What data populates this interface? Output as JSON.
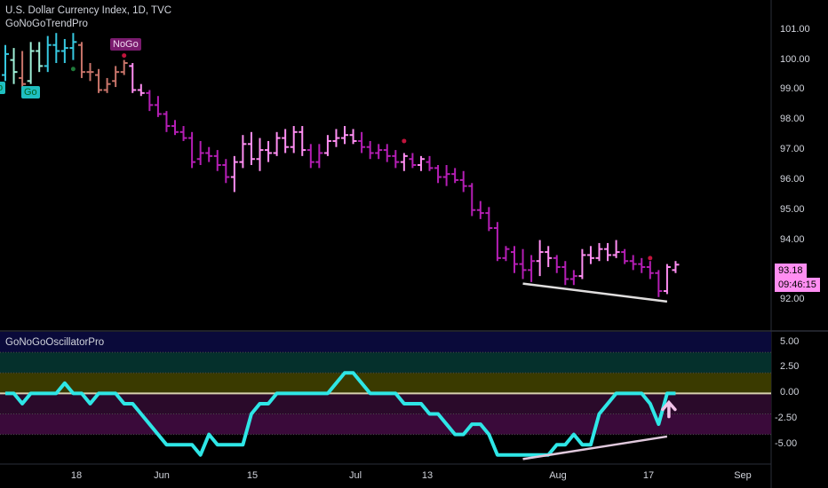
{
  "header": {
    "title": "U.S. Dollar Currency Index, 1D, TVC",
    "indicator": "GoNoGoTrendPro",
    "oscillator_title": "GoNoGoOscillatorPro"
  },
  "labels": {
    "go": "Go",
    "nogo": "NoGo"
  },
  "price_box": {
    "last": "93.18",
    "timer": "09:46:15"
  },
  "colors": {
    "go_strong": "#37c8e0",
    "go_light": "#9ff0d8",
    "nogo_brown": "#c8746a",
    "nogo_strong": "#b41eb4",
    "nogo_light": "#ff8ef2",
    "nogo_tag": "#7a1b6e",
    "go_tag": "#1fbfc0",
    "osc_line": "#2ee6e6",
    "zero_line": "#d8d2b0"
  },
  "chart_data": [
    {
      "type": "ohlc",
      "title": "U.S. Dollar Currency Index, 1D, TVC",
      "ylim": [
        91.0,
        102.0
      ],
      "y_ticks": [
        "101.00",
        "100.00",
        "99.00",
        "98.00",
        "97.00",
        "96.00",
        "95.00",
        "94.00",
        "93.00",
        "92.00"
      ],
      "x_ticks": [
        "18",
        "Jun",
        "15",
        "Jul",
        "13",
        "Aug",
        "17",
        "Sep"
      ],
      "bars": [
        [
          99.5,
          100.5,
          99.3,
          100.2,
          "go"
        ],
        [
          100.0,
          100.4,
          99.2,
          99.6,
          "golight"
        ],
        [
          99.4,
          100.3,
          98.9,
          99.2,
          "nogobrown"
        ],
        [
          99.3,
          100.6,
          99.2,
          100.3,
          "golight"
        ],
        [
          100.3,
          100.6,
          99.6,
          99.8,
          "golight"
        ],
        [
          99.8,
          100.8,
          99.6,
          100.5,
          "go"
        ],
        [
          100.5,
          100.9,
          99.9,
          100.3,
          "go"
        ],
        [
          100.3,
          100.7,
          99.9,
          100.4,
          "go"
        ],
        [
          100.4,
          100.9,
          100.0,
          100.6,
          "go"
        ],
        [
          100.5,
          100.6,
          99.4,
          99.6,
          "nogobrown"
        ],
        [
          99.6,
          99.9,
          99.3,
          99.6,
          "nogobrown"
        ],
        [
          99.5,
          99.7,
          98.9,
          99.0,
          "nogobrown"
        ],
        [
          99.0,
          99.4,
          98.9,
          99.2,
          "nogobrown"
        ],
        [
          99.3,
          99.8,
          99.1,
          99.6,
          "nogobrown"
        ],
        [
          99.6,
          100.0,
          99.5,
          99.9,
          "nogobrown"
        ],
        [
          99.8,
          99.9,
          98.9,
          99.0,
          "nogolight"
        ],
        [
          99.0,
          99.2,
          98.8,
          98.9,
          "nogolight"
        ],
        [
          98.9,
          99.0,
          98.3,
          98.5,
          "nogo"
        ],
        [
          98.5,
          98.8,
          98.1,
          98.2,
          "nogo"
        ],
        [
          98.2,
          98.3,
          97.6,
          97.8,
          "nogo"
        ],
        [
          97.8,
          98.0,
          97.5,
          97.6,
          "nogo"
        ],
        [
          97.6,
          97.8,
          97.3,
          97.4,
          "nogo"
        ],
        [
          97.4,
          97.6,
          96.4,
          96.6,
          "nogo"
        ],
        [
          96.7,
          97.3,
          96.5,
          96.9,
          "nogo"
        ],
        [
          96.9,
          97.1,
          96.6,
          96.8,
          "nogo"
        ],
        [
          96.8,
          97.0,
          96.3,
          96.5,
          "nogo"
        ],
        [
          96.5,
          96.7,
          95.9,
          96.1,
          "nogo"
        ],
        [
          96.1,
          96.8,
          95.6,
          96.6,
          "nogolight"
        ],
        [
          96.6,
          97.5,
          96.4,
          97.2,
          "nogolight"
        ],
        [
          97.2,
          97.6,
          96.5,
          96.7,
          "nogolight"
        ],
        [
          96.7,
          97.4,
          96.3,
          97.0,
          "nogolight"
        ],
        [
          97.0,
          97.3,
          96.6,
          96.9,
          "nogolight"
        ],
        [
          96.9,
          97.6,
          96.8,
          97.4,
          "nogolight"
        ],
        [
          97.4,
          97.7,
          96.9,
          97.1,
          "nogolight"
        ],
        [
          97.1,
          97.8,
          96.9,
          97.6,
          "nogolight"
        ],
        [
          97.6,
          97.8,
          96.8,
          97.0,
          "nogolight"
        ],
        [
          97.0,
          97.2,
          96.4,
          96.6,
          "nogo"
        ],
        [
          96.6,
          97.2,
          96.4,
          96.9,
          "nogo"
        ],
        [
          96.9,
          97.5,
          96.8,
          97.3,
          "nogolight"
        ],
        [
          97.3,
          97.7,
          97.1,
          97.4,
          "nogolight"
        ],
        [
          97.4,
          97.8,
          97.2,
          97.5,
          "nogolight"
        ],
        [
          97.5,
          97.7,
          97.2,
          97.3,
          "nogolight"
        ],
        [
          97.3,
          97.6,
          96.9,
          97.1,
          "nogo"
        ],
        [
          97.1,
          97.3,
          96.7,
          96.9,
          "nogo"
        ],
        [
          96.9,
          97.2,
          96.7,
          97.0,
          "nogo"
        ],
        [
          97.0,
          97.2,
          96.6,
          96.8,
          "nogo"
        ],
        [
          96.8,
          97.0,
          96.4,
          96.6,
          "nogo"
        ],
        [
          96.6,
          96.9,
          96.3,
          96.8,
          "nogolight"
        ],
        [
          96.7,
          96.9,
          96.4,
          96.5,
          "nogo"
        ],
        [
          96.5,
          96.8,
          96.3,
          96.7,
          "nogolight"
        ],
        [
          96.6,
          96.8,
          96.3,
          96.4,
          "nogo"
        ],
        [
          96.4,
          96.5,
          95.9,
          96.1,
          "nogo"
        ],
        [
          96.1,
          96.5,
          95.8,
          96.2,
          "nogo"
        ],
        [
          96.2,
          96.4,
          95.9,
          96.0,
          "nogo"
        ],
        [
          96.0,
          96.3,
          95.6,
          95.8,
          "nogo"
        ],
        [
          95.8,
          95.9,
          94.8,
          95.0,
          "nogo"
        ],
        [
          95.0,
          95.3,
          94.7,
          94.9,
          "nogo"
        ],
        [
          94.9,
          95.1,
          94.3,
          94.4,
          "nogo"
        ],
        [
          94.4,
          94.6,
          93.3,
          93.4,
          "nogo"
        ],
        [
          93.4,
          93.8,
          93.3,
          93.7,
          "nogo"
        ],
        [
          93.6,
          93.8,
          92.9,
          93.2,
          "nogo"
        ],
        [
          93.2,
          93.7,
          92.7,
          93.0,
          "nogo"
        ],
        [
          93.0,
          93.5,
          92.6,
          93.3,
          "nogo"
        ],
        [
          93.3,
          94.0,
          92.8,
          93.6,
          "nogolight"
        ],
        [
          93.6,
          93.8,
          93.1,
          93.4,
          "nogolight"
        ],
        [
          93.4,
          93.5,
          92.9,
          93.1,
          "nogo"
        ],
        [
          93.1,
          93.3,
          92.5,
          92.7,
          "nogo"
        ],
        [
          92.7,
          93.0,
          92.5,
          92.8,
          "nogo"
        ],
        [
          92.8,
          93.7,
          92.7,
          93.5,
          "nogolight"
        ],
        [
          93.5,
          93.8,
          93.2,
          93.4,
          "nogolight"
        ],
        [
          93.4,
          93.9,
          93.3,
          93.7,
          "nogolight"
        ],
        [
          93.7,
          93.9,
          93.3,
          93.5,
          "nogolight"
        ],
        [
          93.5,
          94.0,
          93.4,
          93.6,
          "nogolight"
        ],
        [
          93.6,
          93.7,
          93.2,
          93.3,
          "nogo"
        ],
        [
          93.3,
          93.5,
          93.0,
          93.2,
          "nogo"
        ],
        [
          93.2,
          93.4,
          92.9,
          93.1,
          "nogo"
        ],
        [
          93.1,
          93.3,
          92.7,
          92.9,
          "nogo"
        ],
        [
          92.9,
          93.0,
          92.1,
          92.3,
          "nogo"
        ],
        [
          92.3,
          93.2,
          92.2,
          93.1,
          "nogolight"
        ],
        [
          93.0,
          93.3,
          92.9,
          93.18,
          "nogolight"
        ]
      ],
      "divergence_line": {
        "start": [
          61,
          92.55
        ],
        "end": [
          78,
          91.95
        ]
      }
    },
    {
      "type": "line",
      "title": "GoNoGoOscillatorPro",
      "ylim": [
        -6.8,
        6.0
      ],
      "y_ticks": [
        "5.00",
        "2.50",
        "0.00",
        "-2.50",
        "-5.00"
      ],
      "zones": [
        {
          "from": 4.0,
          "to": 6.0,
          "color": "#0a0a3a"
        },
        {
          "from": 2.0,
          "to": 4.0,
          "color": "#05302c"
        },
        {
          "from": 0.0,
          "to": 2.0,
          "color": "#3a3a00"
        },
        {
          "from": -2.0,
          "to": 0.0,
          "color": "#2a0a2a"
        },
        {
          "from": -4.0,
          "to": -2.0,
          "color": "#3a0a3a"
        }
      ],
      "values": [
        0,
        0,
        -1,
        0,
        0,
        0,
        0,
        1,
        0,
        0,
        -1,
        0,
        0,
        0,
        -1,
        -1,
        -2,
        -3,
        -4,
        -5,
        -5,
        -5,
        -5,
        -6,
        -4,
        -5,
        -5,
        -5,
        -5,
        -2,
        -1,
        -1,
        0,
        0,
        0,
        0,
        0,
        0,
        0,
        1,
        2,
        2,
        1,
        0,
        0,
        0,
        0,
        -1,
        -1,
        -1,
        -2,
        -2,
        -3,
        -4,
        -4,
        -3,
        -3,
        -4,
        -6,
        -6,
        -6,
        -6,
        -6,
        -6,
        -6,
        -5,
        -5,
        -4,
        -5,
        -5,
        -2,
        -1,
        0,
        0,
        0,
        0,
        -1,
        -3,
        0,
        0
      ],
      "divergence_line": {
        "start": [
          61,
          -6.4
        ],
        "end": [
          78,
          -4.2
        ]
      }
    }
  ]
}
